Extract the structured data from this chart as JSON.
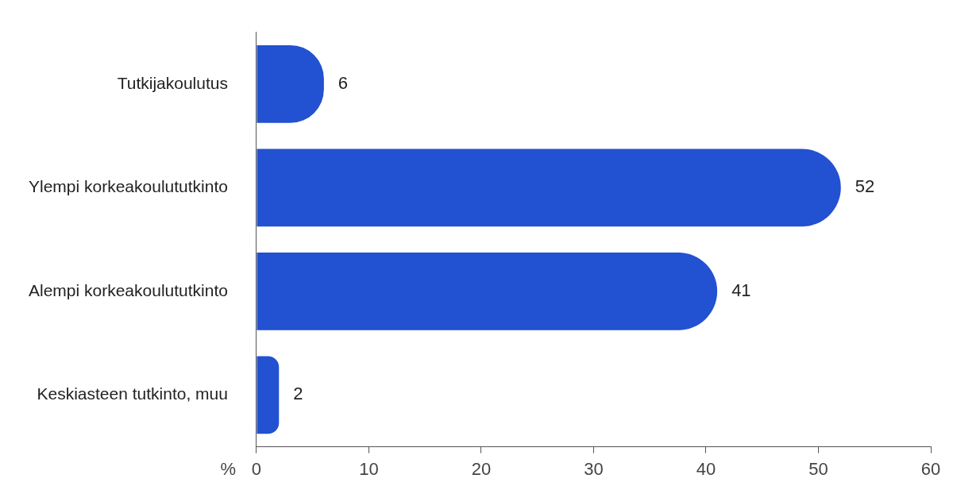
{
  "chart_data": {
    "type": "bar",
    "orientation": "horizontal",
    "categories": [
      "Tutkijakoulutus",
      "Ylempi korkeakoulututkinto",
      "Alempi korkeakoulututkinto",
      "Keskiasteen tutkinto, muu"
    ],
    "values": [
      6,
      52,
      41,
      2
    ],
    "color": "#2251d1",
    "xlabel": "%",
    "xlim": [
      0,
      60
    ],
    "xticks": [
      0,
      10,
      20,
      30,
      40,
      50,
      60
    ],
    "data_labels": true
  }
}
